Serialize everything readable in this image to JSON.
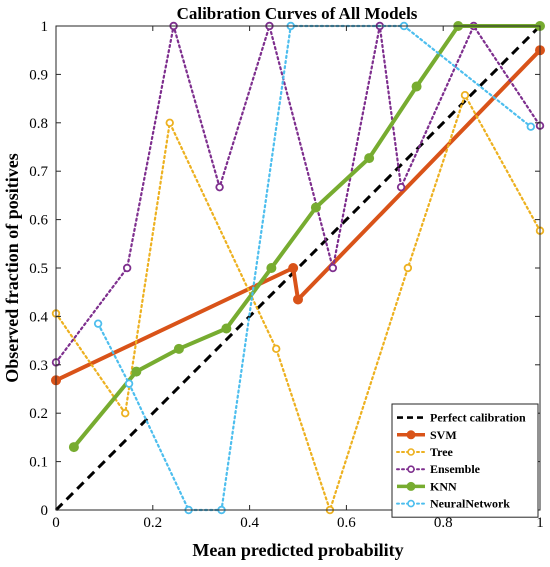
{
  "chart_data": {
    "type": "line",
    "title": "Calibration Curves of All Models",
    "xlabel": "Mean predicted probability",
    "ylabel": "Observed fraction of positives",
    "xlim": [
      0,
      1
    ],
    "ylim": [
      0,
      1
    ],
    "xticks": [
      "0",
      "0.2",
      "0.4",
      "0.6",
      "0.8",
      "1"
    ],
    "yticks": [
      "0",
      "0.1",
      "0.2",
      "0.3",
      "0.4",
      "0.5",
      "0.6",
      "0.7",
      "0.8",
      "0.9",
      "1"
    ],
    "grid": false,
    "legend_position": "bottom-right",
    "reference": {
      "name": "Perfect calibration",
      "x": [
        0,
        1
      ],
      "y": [
        0,
        1
      ],
      "color": "#000000",
      "style": "dashed"
    },
    "series": [
      {
        "name": "SVM",
        "color": "#D95319",
        "style": "solid",
        "marker": "filled",
        "x": [
          0.0,
          0.49,
          0.5,
          1.0
        ],
        "y": [
          0.268,
          0.5,
          0.435,
          0.95
        ]
      },
      {
        "name": "Tree",
        "color": "#EDB120",
        "style": "dotted",
        "marker": "open",
        "x": [
          0.0,
          0.143,
          0.235,
          0.455,
          0.566,
          0.727,
          0.845,
          1.0
        ],
        "y": [
          0.406,
          0.2,
          0.8,
          0.333,
          0.0,
          0.5,
          0.857,
          0.577
        ]
      },
      {
        "name": "Ensemble",
        "color": "#7E2F8E",
        "style": "dotted",
        "marker": "open",
        "x": [
          0.0,
          0.147,
          0.243,
          0.338,
          0.441,
          0.572,
          0.669,
          0.713,
          0.863,
          1.0
        ],
        "y": [
          0.305,
          0.5,
          1.0,
          0.667,
          1.0,
          0.5,
          1.0,
          0.667,
          1.0,
          0.794
        ]
      },
      {
        "name": "KNN",
        "color": "#77AC30",
        "style": "solid",
        "marker": "filled",
        "x": [
          0.037,
          0.166,
          0.254,
          0.352,
          0.445,
          0.537,
          0.647,
          0.745,
          0.831,
          1.0
        ],
        "y": [
          0.13,
          0.286,
          0.333,
          0.375,
          0.5,
          0.625,
          0.727,
          0.875,
          1.0,
          1.0
        ]
      },
      {
        "name": "NeuralNetwork",
        "color": "#4DBEEE",
        "style": "dotted",
        "marker": "open",
        "x": [
          0.087,
          0.151,
          0.274,
          0.342,
          0.485,
          0.719,
          0.981
        ],
        "y": [
          0.385,
          0.261,
          0.0,
          0.0,
          1.0,
          1.0,
          0.792
        ]
      }
    ]
  }
}
